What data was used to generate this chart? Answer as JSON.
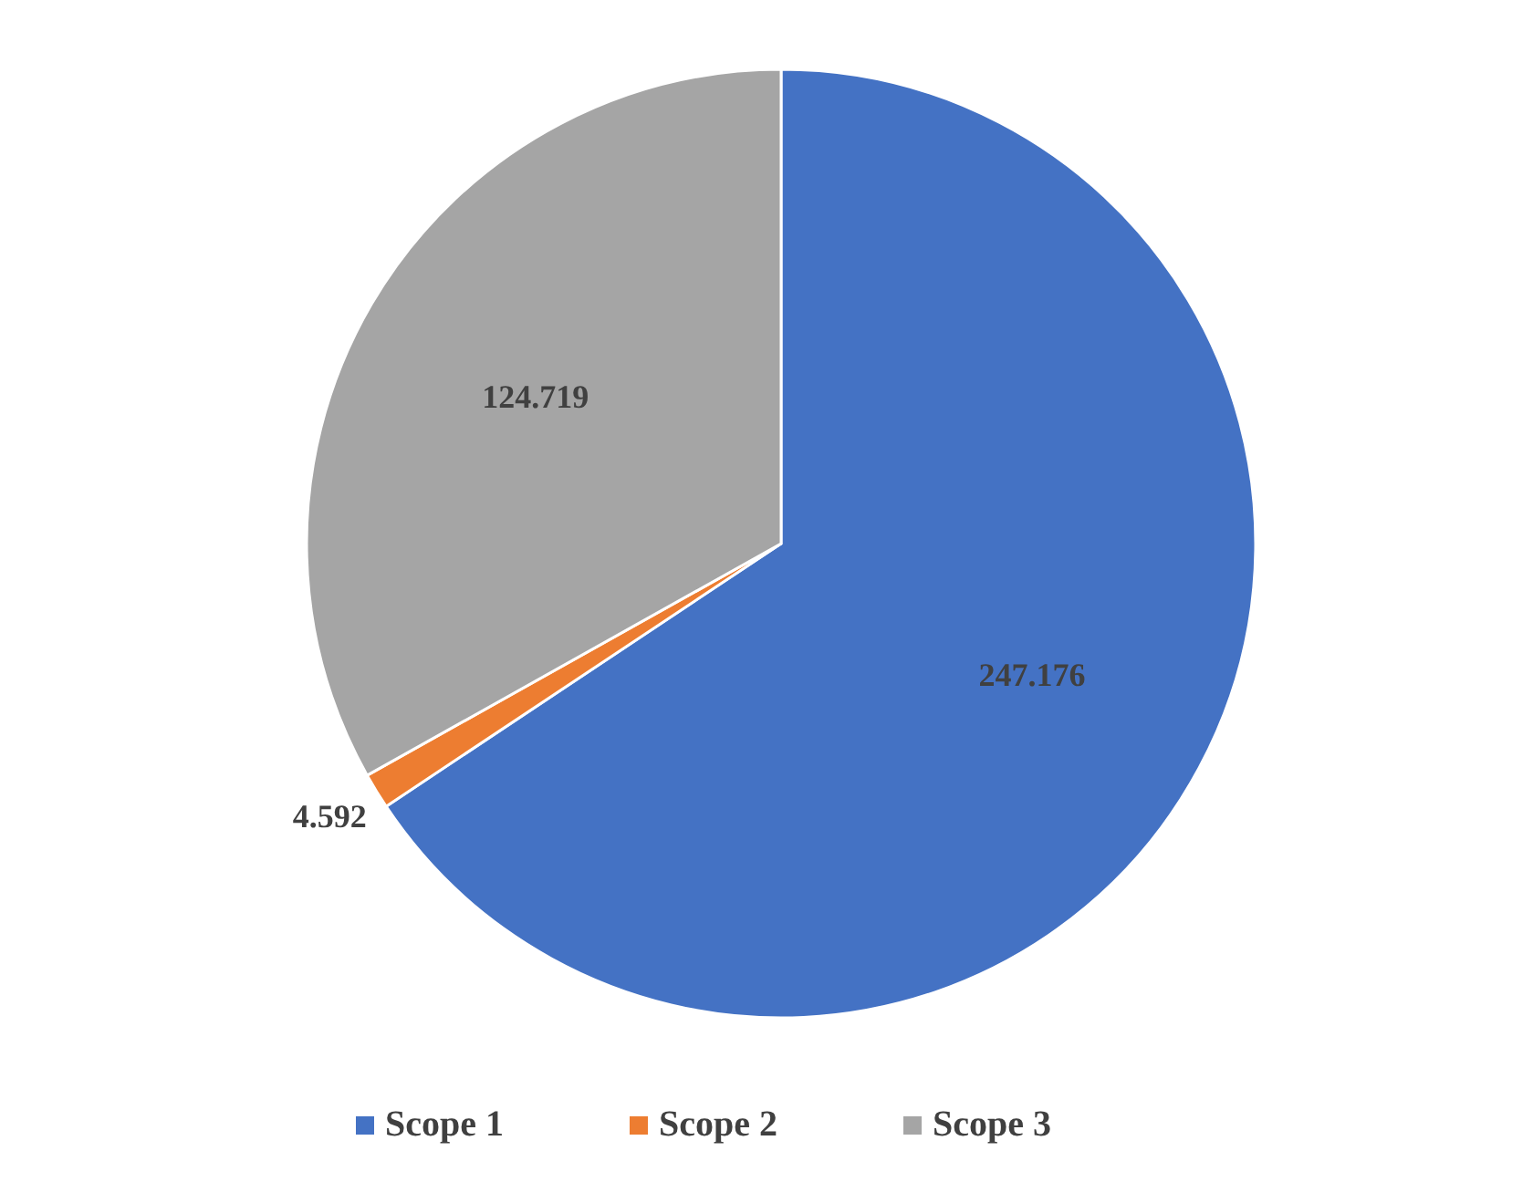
{
  "chart_data": {
    "type": "pie",
    "categories": [
      "Scope 1",
      "Scope 2",
      "Scope 3"
    ],
    "values": [
      247.176,
      4.592,
      124.719
    ],
    "colors": [
      "#4472c4",
      "#ed7d31",
      "#a5a5a5"
    ],
    "data_labels": true,
    "legend": "bottom"
  }
}
